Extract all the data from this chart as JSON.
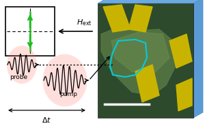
{
  "bg_color": "#ffffff",
  "panel_face_color": "#3a5c3a",
  "panel_side_color": "#5b9bd5",
  "panel_top_color": "#4a6e4a",
  "yellow_color": "#c8b400",
  "cyan_color": "#00cccc",
  "green_arrow_color": "#22bb22",
  "probe_color": "#cc2200",
  "pump_color": "#cc2200",
  "font_size": 6.5
}
